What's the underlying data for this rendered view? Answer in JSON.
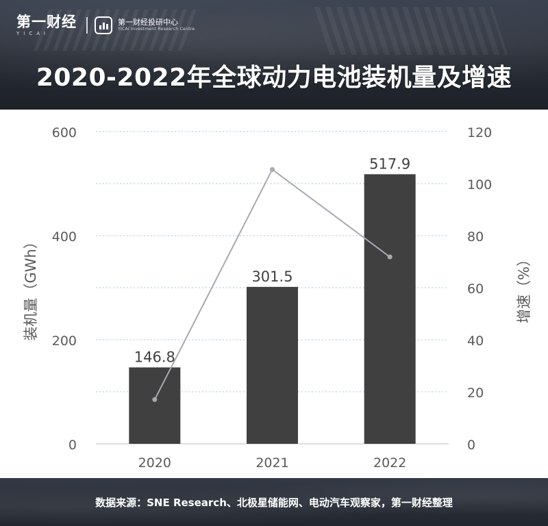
{
  "brand": {
    "name": "第一财经",
    "latin": "YICAI",
    "center_name": "第一财经投研中心",
    "center_name_en": "YICAI Investment Research Centre"
  },
  "title": "2020-2022年全球动力电池装机量及增速",
  "source": "数据来源：SNE Research、北极星储能网、电动汽车观察家，第一财经整理",
  "colors": {
    "bar": "#404040",
    "line": "#a6aab0",
    "grid": "#a9c4dc",
    "header_bg": "#2a2f38",
    "text": "#404040"
  },
  "chart_data": {
    "type": "bar",
    "title": "2020-2022年全球动力电池装机量及增速",
    "categories": [
      "2020",
      "2021",
      "2022"
    ],
    "series": [
      {
        "name": "装机量（GWh）",
        "type": "bar",
        "axis": "left",
        "values": [
          146.8,
          301.5,
          517.9
        ],
        "labels": [
          "146.8",
          "301.5",
          "517.9"
        ]
      },
      {
        "name": "增速（%）",
        "type": "line",
        "axis": "right",
        "values": [
          17,
          105.4,
          71.8
        ]
      }
    ],
    "ylabel": "装机量（GWh）",
    "y2label": "增速（%）",
    "ylim": [
      0,
      600
    ],
    "y2lim": [
      0,
      120
    ],
    "yticks": [
      "0",
      "200",
      "400",
      "600"
    ],
    "y2ticks": [
      "0",
      "20",
      "40",
      "60",
      "80",
      "100",
      "120"
    ],
    "grid": true,
    "legend": "none"
  }
}
